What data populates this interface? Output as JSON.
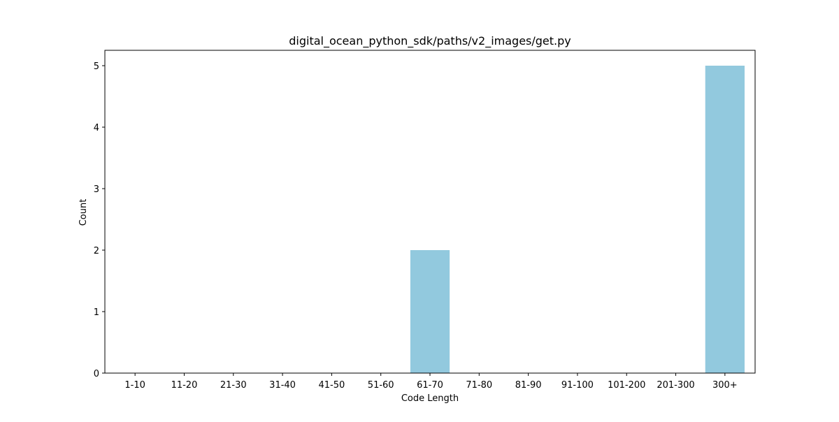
{
  "chart_data": {
    "type": "bar",
    "title": "digital_ocean_python_sdk/paths/v2_images/get.py",
    "xlabel": "Code Length",
    "ylabel": "Count",
    "categories": [
      "1-10",
      "11-20",
      "21-30",
      "31-40",
      "41-50",
      "51-60",
      "61-70",
      "71-80",
      "81-90",
      "91-100",
      "101-200",
      "201-300",
      "300+"
    ],
    "values": [
      0,
      0,
      0,
      0,
      0,
      0,
      2,
      0,
      0,
      0,
      0,
      0,
      5
    ],
    "ylim": [
      0,
      5.25
    ],
    "yticks": [
      0,
      1,
      2,
      3,
      4,
      5
    ],
    "grid": false,
    "bar_color": "#92c9de"
  }
}
